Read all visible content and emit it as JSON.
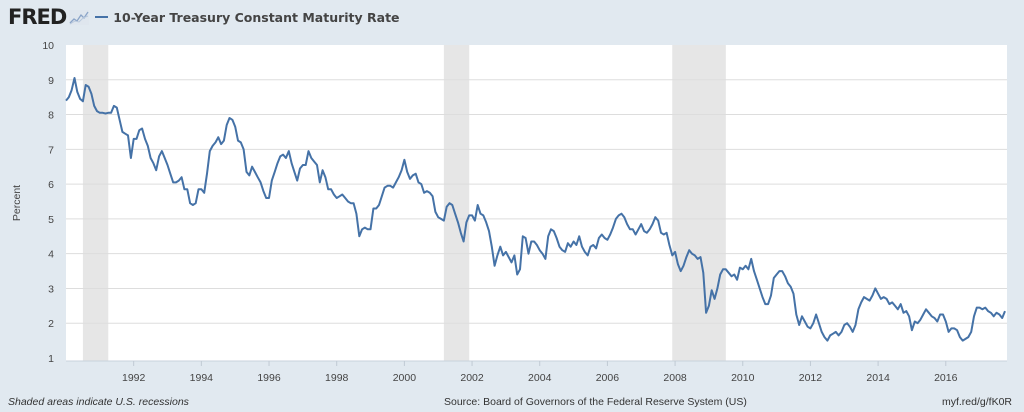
{
  "header": {
    "logo": "FRED",
    "logo_icon": "chart-line-icon",
    "title": "10-Year Treasury Constant Maturity Rate"
  },
  "footer": {
    "note": "Shaded areas indicate U.S. recessions",
    "source": "Source: Board of Governors of the Federal Reserve System (US)",
    "link": "myf.red/g/fK0R"
  },
  "colors": {
    "line": "#4572a7",
    "recession": "#e6e6e6",
    "background": "#e1e9f0",
    "plot": "#ffffff",
    "grid": "#dddddd"
  },
  "chart_data": {
    "type": "line",
    "title": "10-Year Treasury Constant Maturity Rate",
    "ylabel": "Percent",
    "xlabel": "",
    "ylim": [
      1,
      10
    ],
    "yticks": [
      "1",
      "2",
      "3",
      "4",
      "5",
      "6",
      "7",
      "8",
      "9",
      "10"
    ],
    "xticks": [
      "1992",
      "1994",
      "1996",
      "1998",
      "2000",
      "2002",
      "2004",
      "2006",
      "2008",
      "2010",
      "2012",
      "2014",
      "2016"
    ],
    "grid": true,
    "start": "1990-01",
    "frequency": "monthly",
    "series": [
      {
        "values": [
          8.4,
          8.5,
          8.7,
          9.05,
          8.65,
          8.45,
          8.38,
          8.85,
          8.8,
          8.6,
          8.25,
          8.1,
          8.05,
          8.05,
          8.03,
          8.05,
          8.05,
          8.25,
          8.2,
          7.85,
          7.5,
          7.45,
          7.4,
          6.75,
          7.3,
          7.3,
          7.55,
          7.6,
          7.3,
          7.1,
          6.75,
          6.6,
          6.4,
          6.8,
          6.95,
          6.75,
          6.55,
          6.3,
          6.05,
          6.05,
          6.1,
          6.2,
          5.85,
          5.85,
          5.45,
          5.4,
          5.45,
          5.85,
          5.85,
          5.75,
          6.3,
          6.95,
          7.1,
          7.2,
          7.35,
          7.15,
          7.25,
          7.7,
          7.9,
          7.85,
          7.65,
          7.25,
          7.2,
          7.0,
          6.35,
          6.25,
          6.5,
          6.35,
          6.2,
          6.05,
          5.8,
          5.6,
          5.6,
          6.1,
          6.35,
          6.6,
          6.8,
          6.85,
          6.75,
          6.95,
          6.6,
          6.35,
          6.1,
          6.45,
          6.55,
          6.55,
          6.95,
          6.75,
          6.65,
          6.55,
          6.05,
          6.4,
          6.2,
          5.85,
          5.85,
          5.7,
          5.6,
          5.65,
          5.7,
          5.6,
          5.5,
          5.45,
          5.45,
          5.15,
          4.5,
          4.7,
          4.75,
          4.7,
          4.7,
          5.3,
          5.3,
          5.4,
          5.65,
          5.9,
          5.95,
          5.95,
          5.9,
          6.05,
          6.2,
          6.4,
          6.7,
          6.35,
          6.15,
          6.25,
          6.3,
          6.05,
          6.0,
          5.75,
          5.8,
          5.75,
          5.65,
          5.2,
          5.05,
          5.0,
          4.95,
          5.35,
          5.45,
          5.4,
          5.15,
          4.9,
          4.6,
          4.35,
          4.9,
          5.1,
          5.1,
          4.95,
          5.4,
          5.15,
          5.1,
          4.9,
          4.65,
          4.2,
          3.65,
          3.95,
          4.2,
          3.95,
          4.05,
          3.9,
          3.75,
          3.95,
          3.4,
          3.55,
          4.5,
          4.45,
          4.0,
          4.35,
          4.35,
          4.25,
          4.1,
          4.0,
          3.85,
          4.5,
          4.7,
          4.65,
          4.45,
          4.2,
          4.1,
          4.05,
          4.3,
          4.2,
          4.35,
          4.25,
          4.5,
          4.2,
          4.05,
          3.95,
          4.2,
          4.25,
          4.15,
          4.45,
          4.55,
          4.45,
          4.4,
          4.55,
          4.75,
          5.0,
          5.1,
          5.15,
          5.05,
          4.85,
          4.7,
          4.7,
          4.55,
          4.7,
          4.85,
          4.65,
          4.6,
          4.7,
          4.85,
          5.05,
          4.95,
          4.6,
          4.55,
          4.6,
          4.25,
          3.95,
          4.05,
          3.7,
          3.5,
          3.65,
          3.9,
          4.1,
          4.0,
          3.95,
          3.85,
          3.9,
          3.45,
          2.3,
          2.5,
          2.95,
          2.7,
          3.0,
          3.4,
          3.55,
          3.55,
          3.45,
          3.35,
          3.4,
          3.25,
          3.6,
          3.55,
          3.65,
          3.55,
          3.85,
          3.5,
          3.25,
          3.0,
          2.75,
          2.55,
          2.55,
          2.8,
          3.3,
          3.4,
          3.5,
          3.5,
          3.35,
          3.15,
          3.05,
          2.85,
          2.25,
          1.95,
          2.2,
          2.05,
          1.9,
          1.85,
          2.0,
          2.25,
          2.0,
          1.75,
          1.6,
          1.5,
          1.65,
          1.7,
          1.75,
          1.65,
          1.75,
          1.95,
          2.0,
          1.9,
          1.75,
          1.95,
          2.4,
          2.6,
          2.75,
          2.7,
          2.65,
          2.8,
          3.0,
          2.85,
          2.7,
          2.75,
          2.7,
          2.55,
          2.6,
          2.5,
          2.4,
          2.55,
          2.3,
          2.35,
          2.2,
          1.8,
          2.05,
          2.0,
          2.1,
          2.25,
          2.4,
          2.3,
          2.2,
          2.15,
          2.05,
          2.25,
          2.25,
          2.05,
          1.75,
          1.85,
          1.85,
          1.8,
          1.6,
          1.5,
          1.55,
          1.6,
          1.75,
          2.2,
          2.45,
          2.45,
          2.4,
          2.45,
          2.35,
          2.3,
          2.2,
          2.3,
          2.25,
          2.15,
          2.35
        ]
      }
    ],
    "recessions": [
      {
        "start": "1990-07",
        "end": "1991-03"
      },
      {
        "start": "2001-03",
        "end": "2001-11"
      },
      {
        "start": "2007-12",
        "end": "2009-06"
      }
    ]
  }
}
